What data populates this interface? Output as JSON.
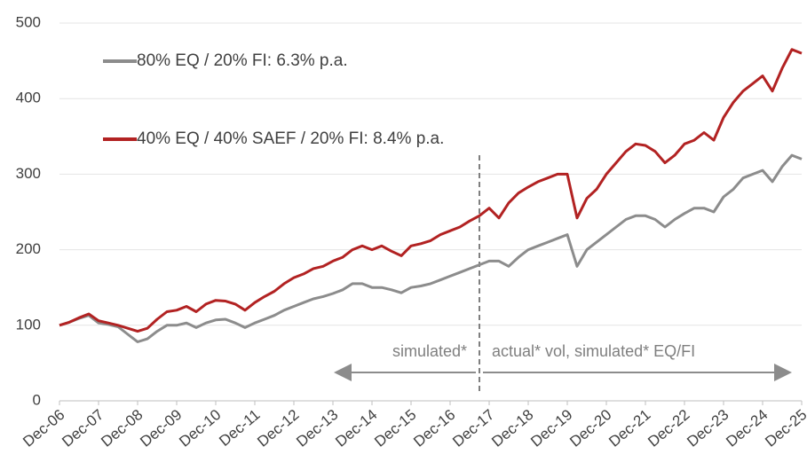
{
  "chart_data": {
    "type": "line",
    "categories": [
      "Dec-06",
      null,
      null,
      null,
      "Dec-07",
      null,
      null,
      null,
      "Dec-08",
      null,
      null,
      null,
      "Dec-09",
      null,
      null,
      null,
      "Dec-10",
      null,
      null,
      null,
      "Dec-11",
      null,
      null,
      null,
      "Dec-12",
      null,
      null,
      null,
      "Dec-13",
      null,
      null,
      null,
      "Dec-14",
      null,
      null,
      null,
      "Dec-15",
      null,
      null,
      null,
      "Dec-16",
      null,
      null,
      null,
      "Dec-17",
      null,
      null,
      null,
      "Dec-18",
      null,
      null,
      null,
      "Dec-19",
      null,
      null,
      null,
      "Dec-20",
      null,
      null,
      null,
      "Dec-21",
      null,
      null,
      null,
      "Dec-22",
      null,
      null,
      null,
      "Dec-23",
      null,
      null,
      null,
      "Dec-24",
      null,
      null,
      null,
      "Dec-25"
    ],
    "series": [
      {
        "name": "80% EQ / 20% FI: 6.3% p.a.",
        "color": "#8c8c8c",
        "values": [
          100,
          104,
          109,
          113,
          103,
          101,
          98,
          88,
          78,
          82,
          92,
          100,
          100,
          103,
          97,
          103,
          107,
          108,
          103,
          97,
          103,
          108,
          113,
          120,
          125,
          130,
          135,
          138,
          142,
          147,
          155,
          155,
          150,
          150,
          147,
          143,
          150,
          152,
          155,
          160,
          165,
          170,
          175,
          180,
          185,
          185,
          178,
          190,
          200,
          205,
          210,
          215,
          220,
          178,
          200,
          210,
          220,
          230,
          240,
          245,
          245,
          240,
          230,
          240,
          248,
          255,
          255,
          250,
          270,
          280,
          295,
          300,
          305,
          290,
          310,
          325,
          320
        ]
      },
      {
        "name": "40% EQ / 40% SAEF / 20% FI: 8.4% p.a.",
        "color": "#b22222",
        "values": [
          100,
          104,
          110,
          115,
          106,
          103,
          100,
          96,
          92,
          96,
          108,
          118,
          120,
          125,
          118,
          128,
          133,
          132,
          128,
          120,
          130,
          138,
          145,
          155,
          163,
          168,
          175,
          178,
          185,
          190,
          200,
          205,
          200,
          205,
          198,
          192,
          205,
          208,
          212,
          220,
          225,
          230,
          238,
          245,
          255,
          242,
          262,
          275,
          283,
          290,
          295,
          300,
          300,
          242,
          268,
          280,
          300,
          315,
          330,
          340,
          338,
          330,
          315,
          325,
          340,
          345,
          355,
          345,
          375,
          395,
          410,
          420,
          430,
          410,
          440,
          465,
          460
        ]
      }
    ],
    "annotations": [
      "simulated*",
      "actual* vol, simulated* EQ/FI"
    ],
    "ylim": [
      0,
      500
    ],
    "yticks": [
      0,
      100,
      200,
      300,
      400,
      500
    ],
    "grid": true
  }
}
